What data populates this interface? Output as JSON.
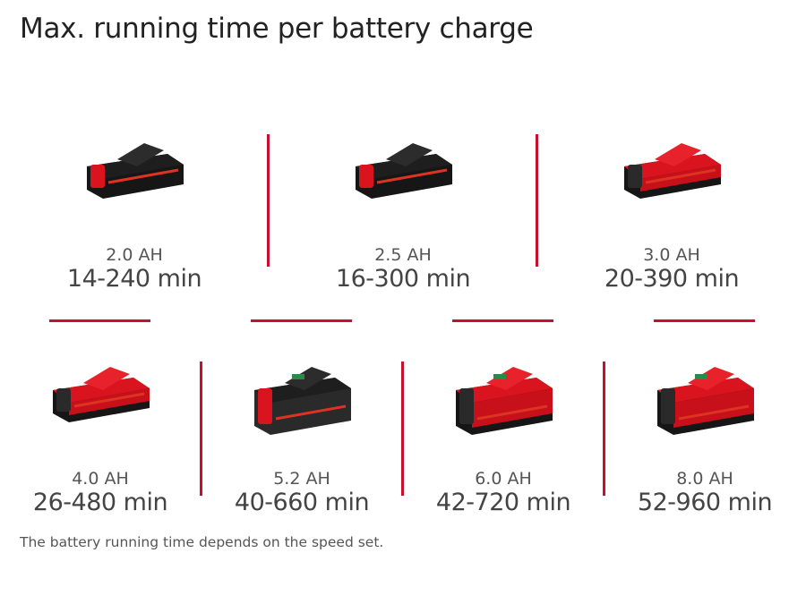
{
  "title": "Max. running time per battery charge",
  "accent_color": "#c8102e",
  "batteries": [
    {
      "capacity": "2.0 AH",
      "runtime": "14-240 min",
      "style": "black-compact"
    },
    {
      "capacity": "2.5 AH",
      "runtime": "16-300 min",
      "style": "black-compact"
    },
    {
      "capacity": "3.0 AH",
      "runtime": "20-390 min",
      "style": "red-compact"
    },
    {
      "capacity": "4.0 AH",
      "runtime": "26-480 min",
      "style": "red-compact"
    },
    {
      "capacity": "5.2 AH",
      "runtime": "40-660 min",
      "style": "black-large"
    },
    {
      "capacity": "6.0 AH",
      "runtime": "42-720 min",
      "style": "red-large"
    },
    {
      "capacity": "8.0 AH",
      "runtime": "52-960 min",
      "style": "red-large"
    }
  ],
  "footnote": "The battery running time depends on the speed set."
}
